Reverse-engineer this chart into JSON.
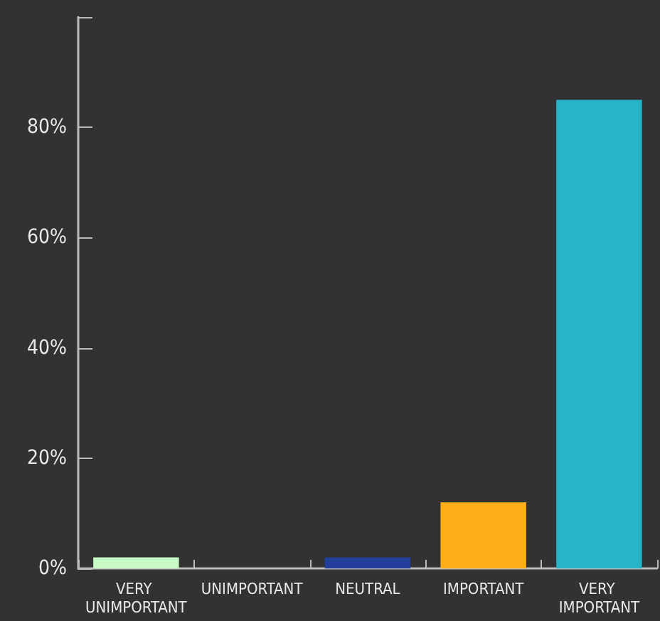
{
  "chart_data": {
    "type": "bar",
    "categories": [
      "VERY UNIMPORTANT",
      "UNIMPORTANT",
      "NEUTRAL",
      "IMPORTANT",
      "VERY IMPORTANT"
    ],
    "values": [
      2,
      0,
      2,
      12,
      85
    ],
    "colors": [
      "#c8fac8",
      "#2a2a2a",
      "#213f99",
      "#fdae19",
      "#27b3c6"
    ],
    "ylim": [
      0,
      100
    ],
    "yticks": [
      {
        "value": 0,
        "label": "0%"
      },
      {
        "value": 20,
        "label": "20%"
      },
      {
        "value": 40,
        "label": "40%"
      },
      {
        "value": 60,
        "label": "60%"
      },
      {
        "value": 80,
        "label": "80%"
      },
      {
        "value": 100,
        "label": null
      }
    ],
    "grid": false
  }
}
